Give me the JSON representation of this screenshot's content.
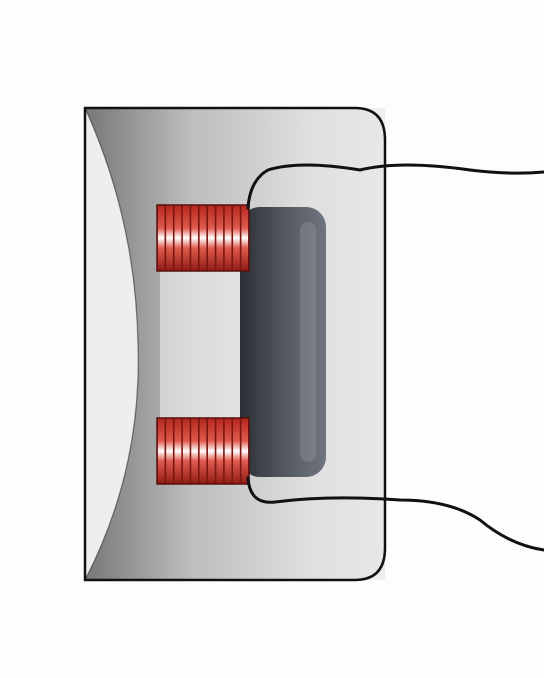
{
  "diagram": {
    "components": [
      {
        "id": "housing",
        "kind": "casing"
      },
      {
        "id": "core",
        "kind": "magnetic-core",
        "shape": "C-shaped"
      },
      {
        "id": "armature",
        "kind": "bar"
      },
      {
        "id": "coil-top",
        "kind": "winding"
      },
      {
        "id": "coil-bottom",
        "kind": "winding"
      },
      {
        "id": "lead-top",
        "kind": "wire"
      },
      {
        "id": "lead-bottom",
        "kind": "wire"
      }
    ],
    "colors": {
      "background": "#fdfdfd",
      "outline": "#111111",
      "core_light": "#f2f2f2",
      "core_dark": "#8e8e8e",
      "armature": "#4a4e56",
      "coil_copper": "#c0392b",
      "coil_highlight": "#ffffff",
      "wire": "#111111"
    },
    "coil_turns": 11
  }
}
